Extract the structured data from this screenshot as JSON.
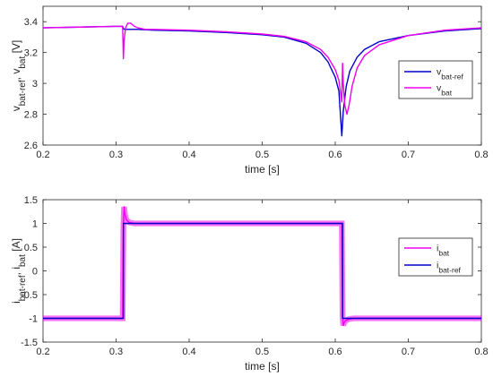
{
  "colors": {
    "ref": "#0000cc",
    "meas": "#ee00ee",
    "axis": "#262626"
  },
  "chart_data": [
    {
      "type": "line",
      "xlabel": "time [s]",
      "ylabel": {
        "main1": "v",
        "sub1": "bat-ref",
        "sep": ", v",
        "sub2": "bat",
        "unit": " [V]"
      },
      "xlim": [
        0.2,
        0.8
      ],
      "ylim": [
        2.6,
        3.5
      ],
      "xticks": [
        0.2,
        0.3,
        0.4,
        0.5,
        0.6,
        0.7,
        0.8
      ],
      "xtick_labels": [
        "0.2",
        "0.3",
        "0.4",
        "0.5",
        "0.6",
        "0.7",
        "0.8"
      ],
      "yticks": [
        2.6,
        2.8,
        3.0,
        3.2,
        3.4
      ],
      "ytick_labels": [
        "2.6",
        "2.8",
        "3",
        "3.2",
        "3.4"
      ],
      "legend_position": "right",
      "series": [
        {
          "name": "v_bat-ref",
          "legend_main": "v",
          "legend_sub": "bat-ref",
          "color": "#0000cc",
          "x": [
            0.2,
            0.25,
            0.3,
            0.309,
            0.31,
            0.312,
            0.33,
            0.35,
            0.4,
            0.45,
            0.5,
            0.53,
            0.56,
            0.58,
            0.59,
            0.6,
            0.605,
            0.609,
            0.611,
            0.615,
            0.62,
            0.63,
            0.64,
            0.66,
            0.7,
            0.75,
            0.8
          ],
          "y": [
            3.36,
            3.365,
            3.37,
            3.37,
            3.355,
            3.35,
            3.35,
            3.345,
            3.34,
            3.33,
            3.315,
            3.3,
            3.26,
            3.2,
            3.14,
            3.04,
            2.95,
            2.66,
            2.82,
            2.98,
            3.08,
            3.17,
            3.22,
            3.27,
            3.31,
            3.34,
            3.355
          ]
        },
        {
          "name": "v_bat",
          "legend_main": "v",
          "legend_sub": "bat",
          "color": "#ee00ee",
          "x": [
            0.2,
            0.25,
            0.3,
            0.309,
            0.31,
            0.311,
            0.313,
            0.316,
            0.32,
            0.325,
            0.33,
            0.34,
            0.35,
            0.4,
            0.45,
            0.5,
            0.53,
            0.56,
            0.58,
            0.59,
            0.6,
            0.605,
            0.609,
            0.61,
            0.611,
            0.613,
            0.616,
            0.619,
            0.623,
            0.63,
            0.64,
            0.66,
            0.7,
            0.75,
            0.8
          ],
          "y": [
            3.36,
            3.365,
            3.37,
            3.37,
            3.16,
            3.28,
            3.36,
            3.39,
            3.39,
            3.37,
            3.36,
            3.35,
            3.35,
            3.345,
            3.335,
            3.32,
            3.305,
            3.27,
            3.22,
            3.17,
            3.09,
            3.02,
            2.88,
            3.13,
            3.0,
            2.86,
            2.8,
            2.86,
            2.98,
            3.1,
            3.18,
            3.25,
            3.31,
            3.345,
            3.36
          ]
        }
      ]
    },
    {
      "type": "line",
      "xlabel": "time [s]",
      "ylabel": {
        "main1": "i",
        "sub1": "bat-ref",
        "sep": ", i",
        "sub2": "bat",
        "unit": " [A]"
      },
      "xlim": [
        0.2,
        0.8
      ],
      "ylim": [
        -1.5,
        1.5
      ],
      "xticks": [
        0.2,
        0.3,
        0.4,
        0.5,
        0.6,
        0.7,
        0.8
      ],
      "xtick_labels": [
        "0.2",
        "0.3",
        "0.4",
        "0.5",
        "0.6",
        "0.7",
        "0.8"
      ],
      "yticks": [
        -1.5,
        -1,
        -0.5,
        0,
        0.5,
        1,
        1.5
      ],
      "ytick_labels": [
        "-1.5",
        "-1",
        "-0.5",
        "0",
        "0.5",
        "1",
        "1.5"
      ],
      "legend_position": "right",
      "series": [
        {
          "name": "i_bat",
          "legend_main": "i",
          "legend_sub": "bat",
          "color": "#ee00ee",
          "band": 0.06,
          "x": [
            0.2,
            0.309,
            0.31,
            0.311,
            0.312,
            0.314,
            0.318,
            0.325,
            0.35,
            0.609,
            0.61,
            0.611,
            0.612,
            0.614,
            0.618,
            0.625,
            0.65,
            0.8
          ],
          "y": [
            -1.0,
            -1.0,
            0.95,
            1.35,
            1.2,
            1.08,
            1.02,
            1.0,
            1.0,
            1.0,
            -0.95,
            -1.15,
            -1.1,
            -1.05,
            -1.02,
            -1.0,
            -1.0,
            -1.0
          ]
        },
        {
          "name": "i_bat-ref",
          "legend_main": "i",
          "legend_sub": "bat-ref",
          "color": "#0000cc",
          "x": [
            0.2,
            0.31,
            0.31,
            0.61,
            0.61,
            0.8
          ],
          "y": [
            -1.0,
            -1.0,
            1.0,
            1.0,
            -1.0,
            -1.0
          ]
        }
      ]
    }
  ]
}
